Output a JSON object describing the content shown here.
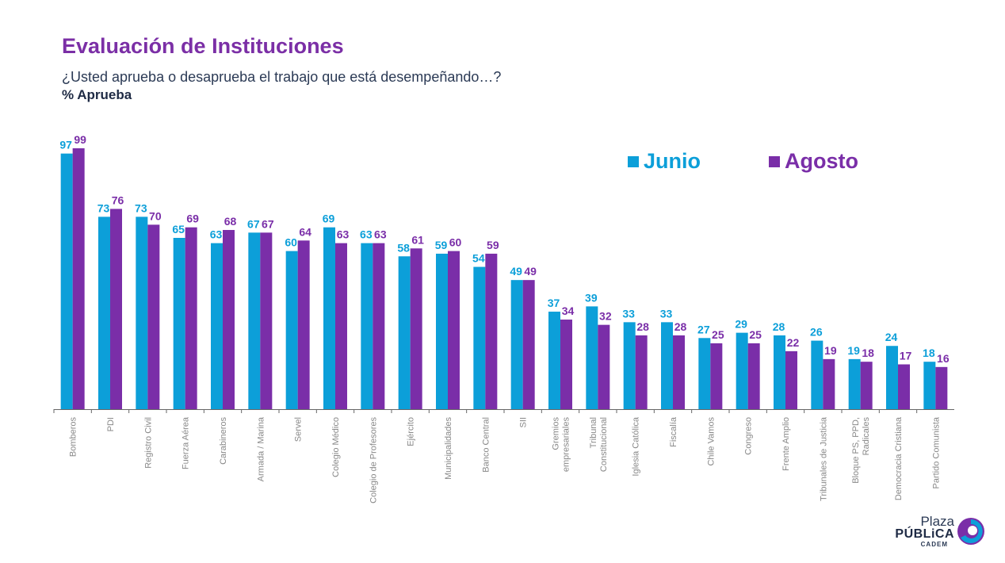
{
  "header": {
    "title": "Evaluación de Instituciones",
    "subtitle": "¿Usted aprueba o desaprueba el trabajo que está desempeñando…?",
    "measure": "% Aprueba"
  },
  "colors": {
    "junio": "#0c9fd9",
    "agosto": "#7a2ea8",
    "axis": "#666666",
    "tick_text": "#888888"
  },
  "logo": {
    "plaza": "Plaza",
    "publica": "PÚBLiCA",
    "cadem": "CADEM",
    "icon": "cadem-swirl-icon"
  },
  "chart_data": {
    "type": "bar",
    "categories": [
      "Bomberos",
      "PDI",
      "Registro Civil",
      "Fuerza Aérea",
      "Carabineros",
      "Armada / Marina",
      "Servel",
      "Colegio Médico",
      "Colegio de Profesores",
      "Ejército",
      "Municipalidades",
      "Banco Central",
      "SII",
      "Gremios empresariales",
      "Tribunal Constitucional",
      "Iglesia Católica",
      "Fiscalía",
      "Chile Vamos",
      "Congreso",
      "Frente Amplio",
      "Tribunales de Justicia",
      "Bloque PS, PPD, Radicales",
      "Democracia Cristiana",
      "Partido Comunista"
    ],
    "category_lines": [
      [
        "Bomberos"
      ],
      [
        "PDI"
      ],
      [
        "Registro Civil"
      ],
      [
        "Fuerza Aérea"
      ],
      [
        "Carabineros"
      ],
      [
        "Armada / Marina"
      ],
      [
        "Servel"
      ],
      [
        "Colegio Médico"
      ],
      [
        "Colegio de Profesores"
      ],
      [
        "Ejército"
      ],
      [
        "Municipalidades"
      ],
      [
        "Banco Central"
      ],
      [
        "SII"
      ],
      [
        "Gremios",
        "empresariales"
      ],
      [
        "Tribunal",
        "Constitucional"
      ],
      [
        "Iglesia Católica"
      ],
      [
        "Fiscalía"
      ],
      [
        "Chile Vamos"
      ],
      [
        "Congreso"
      ],
      [
        "Frente Amplio"
      ],
      [
        "Tribunales de Justicia"
      ],
      [
        "Bloque PS, PPD,",
        "Radicales"
      ],
      [
        "Democracia Cristiana"
      ],
      [
        "Partido Comunista"
      ]
    ],
    "series": [
      {
        "name": "Junio",
        "values": [
          97,
          73,
          73,
          65,
          63,
          67,
          60,
          69,
          63,
          58,
          59,
          54,
          49,
          37,
          39,
          33,
          33,
          27,
          29,
          28,
          26,
          19,
          24,
          18
        ]
      },
      {
        "name": "Agosto",
        "values": [
          99,
          76,
          70,
          69,
          68,
          67,
          64,
          63,
          63,
          61,
          60,
          59,
          49,
          34,
          32,
          28,
          28,
          25,
          25,
          22,
          19,
          18,
          17,
          16
        ]
      }
    ],
    "ylim": [
      0,
      100
    ],
    "grid": false,
    "legend_position": "top-right",
    "xlabel": "",
    "ylabel": ""
  }
}
